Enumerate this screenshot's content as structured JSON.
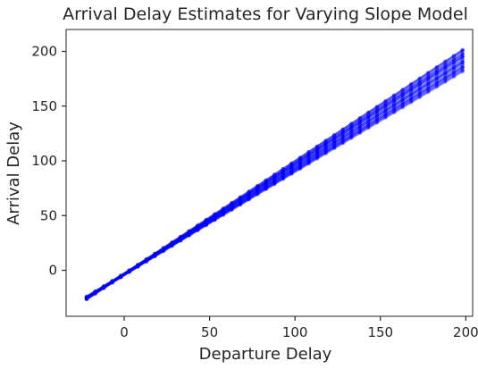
{
  "chart_data": {
    "type": "line",
    "title": "Arrival Delay Estimates for Varying Slope Model",
    "xlabel": "Departure Delay",
    "ylabel": "Arrival Delay",
    "xlim": [
      -34,
      204
    ],
    "ylim": [
      -42,
      220
    ],
    "xticks": [
      0,
      50,
      100,
      150,
      200
    ],
    "yticks": [
      0,
      50,
      100,
      150,
      200
    ],
    "grid": false,
    "line_color": "#0000ff",
    "x_range": [
      -22,
      199
    ],
    "marker_step": 5,
    "series": [
      {
        "intercept": -3.5,
        "slope": 0.935
      },
      {
        "intercept": -4.0,
        "slope": 0.945
      },
      {
        "intercept": -3.0,
        "slope": 0.95
      },
      {
        "intercept": -4.5,
        "slope": 0.96
      },
      {
        "intercept": -3.8,
        "slope": 0.968
      },
      {
        "intercept": -3.2,
        "slope": 0.975
      },
      {
        "intercept": -4.2,
        "slope": 0.982
      },
      {
        "intercept": -3.6,
        "slope": 0.99
      },
      {
        "intercept": -3.0,
        "slope": 1.0
      },
      {
        "intercept": -4.0,
        "slope": 1.005
      },
      {
        "intercept": -3.4,
        "slope": 1.012
      },
      {
        "intercept": -3.9,
        "slope": 1.02
      },
      {
        "intercept": -3.1,
        "slope": 1.028
      },
      {
        "intercept": -3.7,
        "slope": 1.035
      }
    ]
  }
}
